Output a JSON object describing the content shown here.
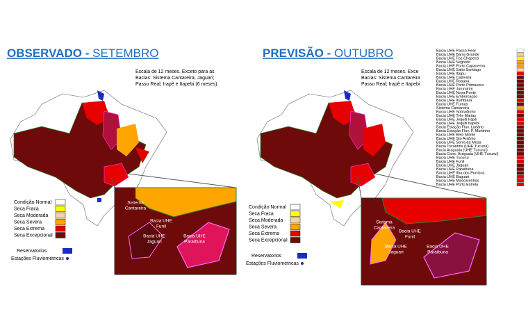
{
  "panels": [
    {
      "title_bold": "OBSERVADO -",
      "title_rest": "SETEMBRO",
      "note": [
        "Escala de 12 meses. Exceto para as",
        "Bacias: Sistema Cantareira; Jaguari;",
        "Passo Real; Irapê e Itapebi (6 meses)."
      ],
      "legend": [
        {
          "label": "Condição Normal",
          "color": "#ffffff"
        },
        {
          "label": "Seca Fraca",
          "color": "#ffff00"
        },
        {
          "label": "Seca Moderada",
          "color": "#f9d49a"
        },
        {
          "label": "Seca Severa",
          "color": "#ffa500"
        },
        {
          "label": "Seca Extrema",
          "color": "#e60000"
        },
        {
          "label": "Seca Excepcional",
          "color": "#6e0a0a"
        }
      ],
      "reservoirs": "Reservatorios",
      "stations": "Estações Fluviométricas",
      "inset_labels": [
        [
          "Sistema",
          "Cantareira"
        ],
        [
          "Bacia UHE",
          "Funil"
        ],
        [
          "Bacia UHE",
          "Jaguari"
        ],
        [
          "Bacia UHE",
          "Paraibuna"
        ]
      ]
    },
    {
      "title_bold": "PREVISÃO -",
      "title_rest": "OUTUBRO",
      "note": [
        "Escala de 12 meses. Exce",
        "Bacias: Sistema Cantareira",
        "Passo Real; Irapê e Itapebi"
      ],
      "legend": [
        {
          "label": "Condição Normal",
          "color": "#ffffff"
        },
        {
          "label": "Seca Fraca",
          "color": "#ffff00"
        },
        {
          "label": "Seca Moderada",
          "color": "#f9d49a"
        },
        {
          "label": "Seca Severa",
          "color": "#ffa500"
        },
        {
          "label": "Seca Extrema",
          "color": "#e60000"
        },
        {
          "label": "Seca Excepcional",
          "color": "#6e0a0a"
        }
      ],
      "reservoirs": "Reservatorios",
      "stations": "Estações Fluviométricas",
      "inset_labels": [
        [
          "Sistema",
          "Cantareira"
        ],
        [
          "Bacia UHE",
          "Funil"
        ],
        [
          "Bacia UHE",
          "Jaguari"
        ],
        [
          "Bacia UHE",
          "Paraibuna"
        ]
      ]
    }
  ],
  "basins": [
    {
      "name": "Bacia UHE Passo Real",
      "color": "#ffffff"
    },
    {
      "name": "Bacia UHE Barra Grande",
      "color": "#f9d49a"
    },
    {
      "name": "Bacia UHE Foz Chapecó",
      "color": "#ffff00"
    },
    {
      "name": "Bacia UHE Segredo",
      "color": "#ffa500"
    },
    {
      "name": "Bacia UHE Porto Capanema",
      "color": "#ffa500"
    },
    {
      "name": "Bacia UHE Salto Santiago",
      "color": "#f9d49a"
    },
    {
      "name": "Bacia UHE Itaipu",
      "color": "#e60000"
    },
    {
      "name": "Bacia UHE Capivara",
      "color": "#6e0a0a"
    },
    {
      "name": "Bacia UHE Rosana",
      "color": "#6e0a0a"
    },
    {
      "name": "Bacia UHE Porto Primavera",
      "color": "#6e0a0a"
    },
    {
      "name": "Bacia UHE Jurumirim",
      "color": "#6e0a0a"
    },
    {
      "name": "Bacia UHE Nova Ponte",
      "color": "#6e0a0a"
    },
    {
      "name": "Bacia UHE Emborcação",
      "color": "#6e0a0a"
    },
    {
      "name": "Bacia UHE Itumbiara",
      "color": "#e60000"
    },
    {
      "name": "Bacia UHE Furnas",
      "color": "#6e0a0a"
    },
    {
      "name": "Sistema Cantareira",
      "color": "#ffa500"
    },
    {
      "name": "Bacia UHE Sobradinho",
      "color": "#e60000"
    },
    {
      "name": "Bacia UHE Três Marias",
      "color": "#6e0a0a"
    },
    {
      "name": "Bacia UHE Jequiti Irapê",
      "color": "#e60000"
    },
    {
      "name": "Bacia UHE Jequiti Itapebi",
      "color": "#e60000"
    },
    {
      "name": "Bacia Estação Fluv. Ladário",
      "color": "#6e0a0a"
    },
    {
      "name": "Bacia Estação Fluv. P. Murtinho",
      "color": "#6e0a0a"
    },
    {
      "name": "Bacia UHE Belo Monte",
      "color": "#6e0a0a"
    },
    {
      "name": "Bacia UHE Sto Antônio",
      "color": "#6e0a0a"
    },
    {
      "name": "Bacia UHE Serra da Mesa",
      "color": "#6e0a0a"
    },
    {
      "name": "Bacia Tocantins (UHE Tucuruí)",
      "color": "#6e0a0a"
    },
    {
      "name": "Bacia Araguaia (UHE Tucuruí)",
      "color": "#6e0a0a"
    },
    {
      "name": "Bacia Conc. Araguaia (UHE Tucuruí)",
      "color": "#6e0a0a"
    },
    {
      "name": "Bacia UHE Tucuruí",
      "color": "#e60000"
    },
    {
      "name": "Bacia UHE Funil",
      "color": "#e60000"
    },
    {
      "name": "Bacia UHE Jaguari",
      "color": "#6e0a0a"
    },
    {
      "name": "Bacia UHE Paraibuna",
      "color": "#6e0a0a"
    },
    {
      "name": "Bacia UHE Ilha dos Pombos",
      "color": "#6e0a0a"
    },
    {
      "name": "Bacia UHE Baguari",
      "color": "#e60000"
    },
    {
      "name": "Bacia UHE Mascarenhas",
      "color": "#e60000"
    },
    {
      "name": "Bacia UHE Porto Estrela",
      "color": "#e60000"
    }
  ]
}
